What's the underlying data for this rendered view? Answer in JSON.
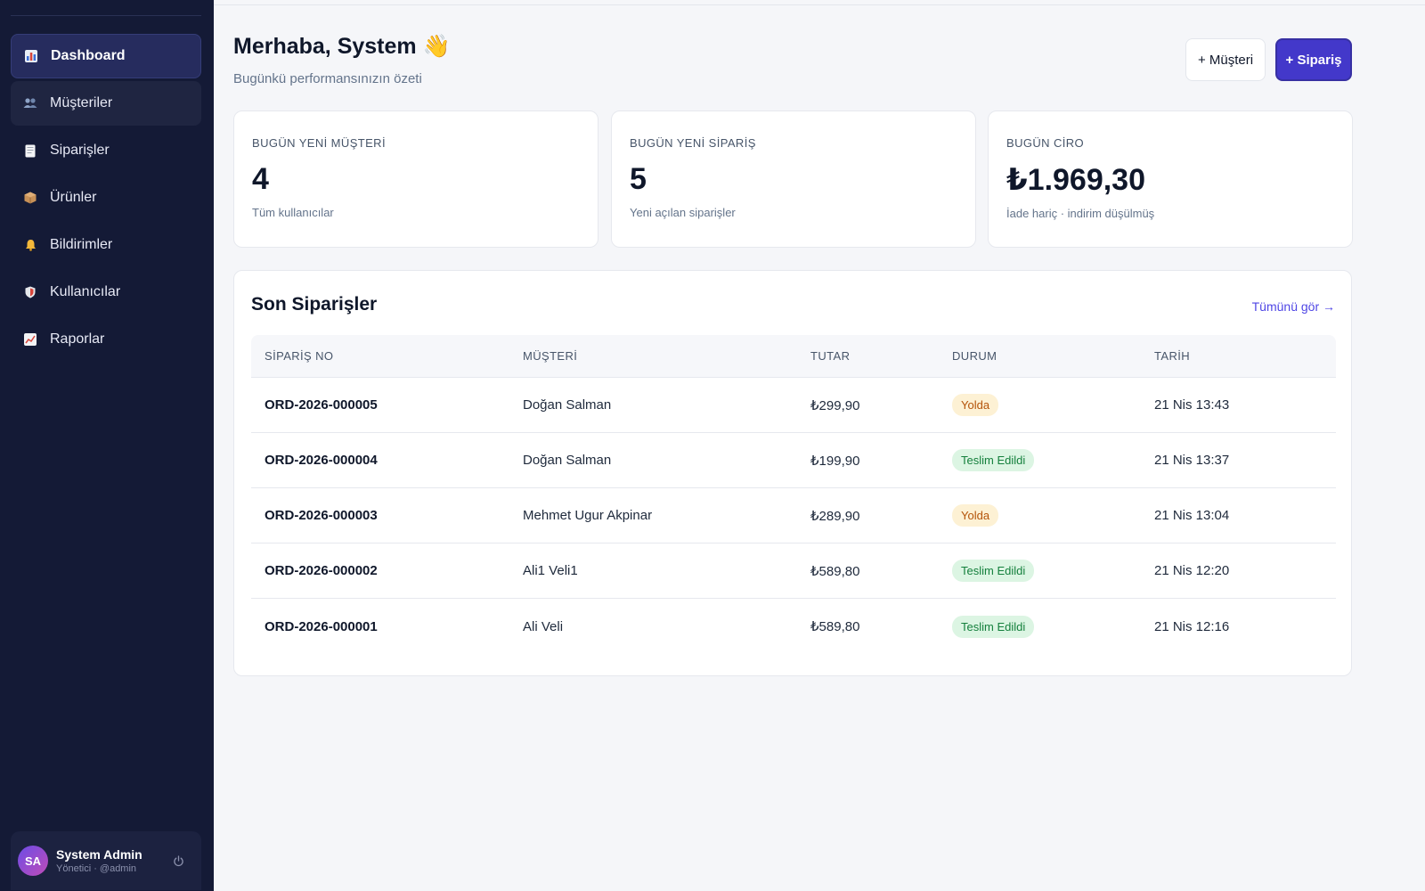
{
  "sidebar": {
    "items": [
      {
        "label": "Dashboard",
        "icon": "bar-chart-icon",
        "active": true
      },
      {
        "label": "Müşteriler",
        "icon": "users-icon"
      },
      {
        "label": "Siparişler",
        "icon": "receipt-icon"
      },
      {
        "label": "Ürünler",
        "icon": "package-icon"
      },
      {
        "label": "Bildirimler",
        "icon": "bell-icon"
      },
      {
        "label": "Kullanıcılar",
        "icon": "shield-icon"
      },
      {
        "label": "Raporlar",
        "icon": "trend-chart-icon"
      }
    ],
    "user": {
      "initials": "SA",
      "name": "System Admin",
      "role": "Yönetici · @admin"
    }
  },
  "header": {
    "greeting": "Merhaba, System 👋",
    "subtitle": "Bugünkü performansınızın özeti",
    "add_customer_label": "+ Müşteri",
    "add_order_label": "+ Sipariş"
  },
  "stats": [
    {
      "label": "BUGÜN YENİ MÜŞTERİ",
      "value": "4",
      "sub": "Tüm kullanıcılar"
    },
    {
      "label": "BUGÜN YENİ SİPARİŞ",
      "value": "5",
      "sub": "Yeni açılan siparişler"
    },
    {
      "label": "BUGÜN CİRO",
      "value": "₺1.969,30",
      "sub": "İade hariç · indirim düşülmüş"
    }
  ],
  "orders": {
    "title": "Son Siparişler",
    "view_all": "Tümünü gör →",
    "columns": [
      "SİPARİŞ NO",
      "MÜŞTERİ",
      "TUTAR",
      "DURUM",
      "TARİH"
    ],
    "rows": [
      {
        "no": "ORD-2026-000005",
        "customer": "Doğan Salman",
        "amount": "₺299,90",
        "status": "Yolda",
        "date": "21 Nis 13:43"
      },
      {
        "no": "ORD-2026-000004",
        "customer": "Doğan Salman",
        "amount": "₺199,90",
        "status": "Teslim Edildi",
        "date": "21 Nis 13:37"
      },
      {
        "no": "ORD-2026-000003",
        "customer": "Mehmet Ugur Akpinar",
        "amount": "₺289,90",
        "status": "Yolda",
        "date": "21 Nis 13:04"
      },
      {
        "no": "ORD-2026-000002",
        "customer": "Ali1 Veli1",
        "amount": "₺589,80",
        "status": "Teslim Edildi",
        "date": "21 Nis 12:20"
      },
      {
        "no": "ORD-2026-000001",
        "customer": "Ali Veli",
        "amount": "₺589,80",
        "status": "Teslim Edildi",
        "date": "21 Nis 12:16"
      }
    ]
  },
  "colors": {
    "sidebar_bg": "#141a36",
    "accent": "#4338ca",
    "status_yolda": "#b45309",
    "status_teslim": "#15803d"
  }
}
